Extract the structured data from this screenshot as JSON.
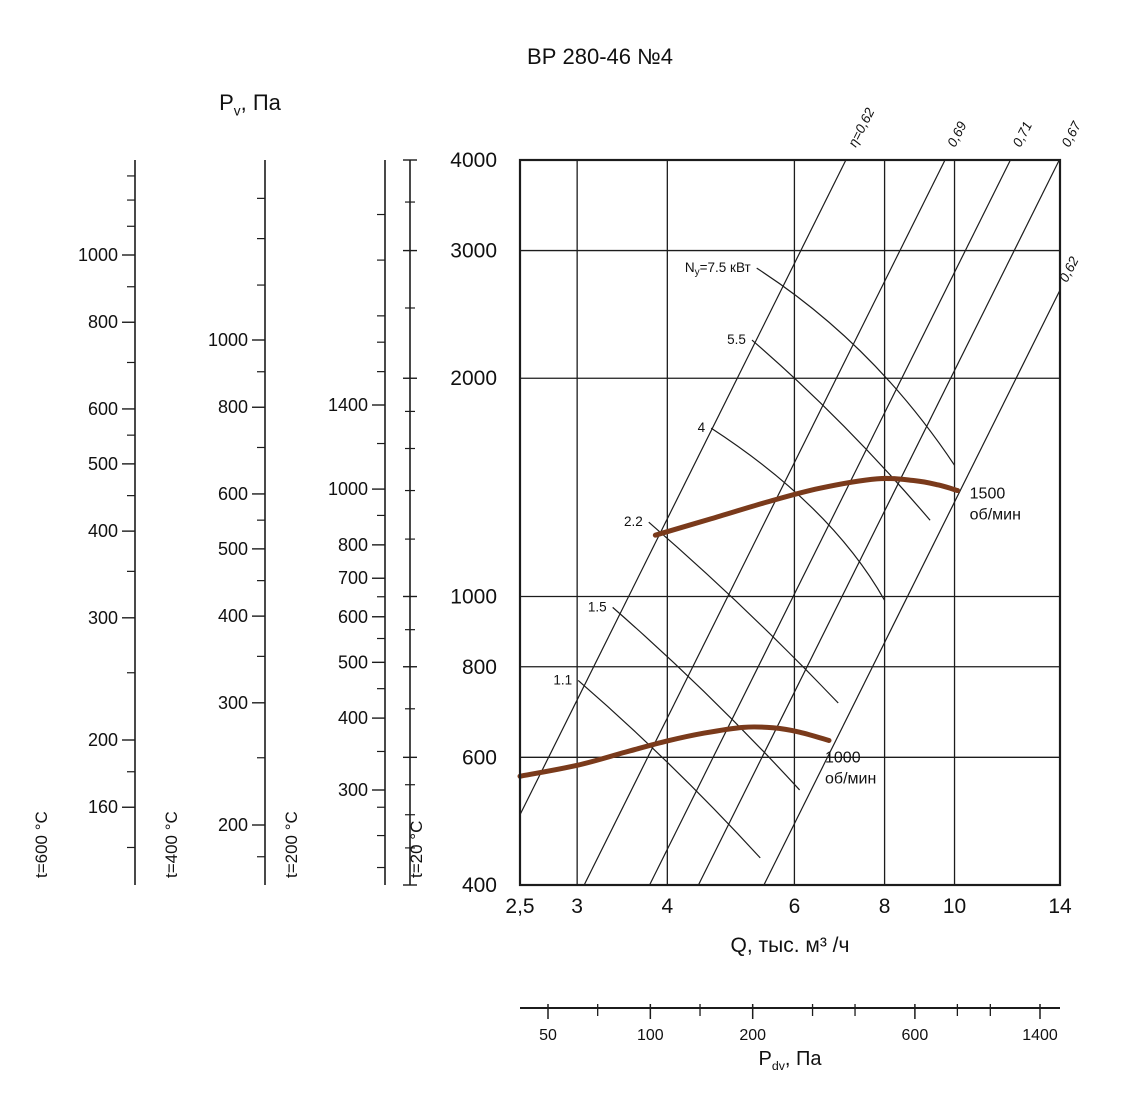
{
  "title": "ВР 280-46 №4",
  "labels": {
    "pv": {
      "base": "P",
      "sub": "v",
      "rest": ", Па"
    },
    "q": "Q, тыс. м³ /ч",
    "pdv": {
      "base": "P",
      "sub": "dv",
      "rest": ", Па"
    }
  },
  "chart_data": {
    "type": "line",
    "title": "ВР 280-46 №4",
    "xlabel": "Q, тыс. м³/ч",
    "ylabel": "Pv, Па",
    "x_axis": {
      "scale": "log",
      "min": 2.5,
      "max": 14,
      "ticks": [
        {
          "v": 2.5,
          "label": "2,5"
        },
        {
          "v": 3,
          "label": "3"
        },
        {
          "v": 4,
          "label": "4"
        },
        {
          "v": 6,
          "label": "6"
        },
        {
          "v": 8,
          "label": "8"
        },
        {
          "v": 10,
          "label": "10"
        },
        {
          "v": 14,
          "label": "14"
        }
      ],
      "gridlines": [
        3,
        4,
        6,
        8,
        10
      ]
    },
    "y_axis": {
      "scale": "log",
      "min": 400,
      "max": 4000,
      "ticks": [
        4000,
        3000,
        2000,
        1000,
        800,
        600,
        400
      ],
      "gridlines": [
        3000,
        2000,
        1000,
        800,
        600
      ]
    },
    "fan_curves": [
      {
        "rpm": 1500,
        "name": "1500 об/мин",
        "label_lines": [
          "1500",
          "об/мин"
        ],
        "label_offset": [
          12,
          8
        ],
        "points": [
          [
            3.85,
            1215
          ],
          [
            4.6,
            1280
          ],
          [
            5.5,
            1350
          ],
          [
            6.5,
            1410
          ],
          [
            7.8,
            1453
          ],
          [
            8.8,
            1445
          ],
          [
            9.5,
            1425
          ],
          [
            10.1,
            1400
          ]
        ]
      },
      {
        "rpm": 1000,
        "name": "1000 об/мин",
        "label_lines": [
          "1000",
          "об/мин"
        ],
        "label_offset": [
          -4,
          22
        ],
        "points": [
          [
            2.5,
            565
          ],
          [
            3.0,
            585
          ],
          [
            3.5,
            610
          ],
          [
            4.0,
            632
          ],
          [
            4.5,
            648
          ],
          [
            5.1,
            660
          ],
          [
            5.6,
            659
          ],
          [
            6.1,
            650
          ],
          [
            6.7,
            633
          ]
        ]
      }
    ],
    "efficiency_lines": [
      {
        "label": "η=0,62",
        "eta": 0.62,
        "k": 80
      },
      {
        "label": "0,69",
        "eta": 0.69,
        "k": 42.5
      },
      {
        "label": "0,71",
        "eta": 0.71,
        "k": 28
      },
      {
        "label": "0,67",
        "eta": 0.67,
        "k": 20.5
      },
      {
        "label": "0,62",
        "eta": 0.62,
        "k": 13.5
      }
    ],
    "power_curves": [
      {
        "kw": 7.5,
        "label": "Nу=7.5 кВт",
        "label_parts": [
          "N",
          "у",
          "=7.5 кВт"
        ],
        "pts": [
          [
            5.32,
            2837
          ],
          [
            7.5,
            2153
          ],
          [
            10.0,
            1517
          ]
        ]
      },
      {
        "kw": 5.5,
        "label": "5.5",
        "pts": [
          [
            5.24,
            2258
          ],
          [
            7.0,
            1724
          ],
          [
            9.25,
            1274
          ]
        ]
      },
      {
        "kw": 4,
        "label": "4",
        "pts": [
          [
            4.6,
            1707
          ],
          [
            6.4,
            1315
          ],
          [
            8.0,
            988
          ]
        ]
      },
      {
        "kw": 2.2,
        "label": "2.2",
        "pts": [
          [
            3.77,
            1266
          ],
          [
            5.13,
            958
          ],
          [
            6.9,
            713
          ]
        ]
      },
      {
        "kw": 1.5,
        "label": "1.5",
        "pts": [
          [
            3.36,
            966
          ],
          [
            4.55,
            731
          ],
          [
            6.1,
            541
          ]
        ]
      },
      {
        "kw": 1.1,
        "label": "1.1",
        "pts": [
          [
            3.01,
            766
          ],
          [
            4.04,
            585
          ],
          [
            5.38,
            436
          ]
        ]
      }
    ],
    "aux_scales": [
      {
        "temp_label": "t=600 °C",
        "majors": [
          1000,
          800,
          600,
          500,
          400,
          300,
          200,
          160
        ],
        "minors": [
          1300,
          1200,
          1100,
          900,
          700,
          550,
          450,
          350,
          250,
          180,
          140
        ],
        "anchors": [
          [
            1000,
            255
          ],
          [
            200,
            740
          ]
        ]
      },
      {
        "temp_label": "t=400 °C",
        "majors": [
          1000,
          800,
          600,
          500,
          400,
          300,
          200
        ],
        "minors": [
          1600,
          1400,
          1200,
          900,
          700,
          550,
          450,
          350,
          250,
          180
        ],
        "anchors": [
          [
            1000,
            340
          ],
          [
            200,
            825
          ]
        ]
      },
      {
        "temp_label": "t=200 °C",
        "majors": [
          1400,
          1000,
          800,
          700,
          600,
          500,
          400,
          300
        ],
        "minors": [
          3000,
          2500,
          2000,
          1800,
          1600,
          1200,
          900,
          650,
          550,
          450,
          350,
          280,
          250,
          220
        ],
        "anchors": [
          [
            1400,
            405
          ],
          [
            300,
            790
          ]
        ]
      },
      {
        "temp_label": "t=20 °C",
        "majors": [
          4000,
          3000,
          2000,
          1000,
          800,
          600,
          400
        ],
        "minors": [
          3500,
          2500,
          1800,
          1600,
          1400,
          1200,
          900,
          700,
          550,
          500,
          450
        ],
        "anchors": null
      }
    ],
    "pdv_axis": {
      "label": "Pdv, Па",
      "majors": [
        50,
        100,
        200,
        600,
        1400
      ],
      "minors": [
        70,
        140,
        300,
        400,
        800,
        1000
      ],
      "anchors": [
        [
          50,
          548
        ],
        [
          1400,
          1040
        ]
      ]
    },
    "colors": {
      "curve": "#7a3a1b",
      "line": "#1c1c1c"
    }
  }
}
